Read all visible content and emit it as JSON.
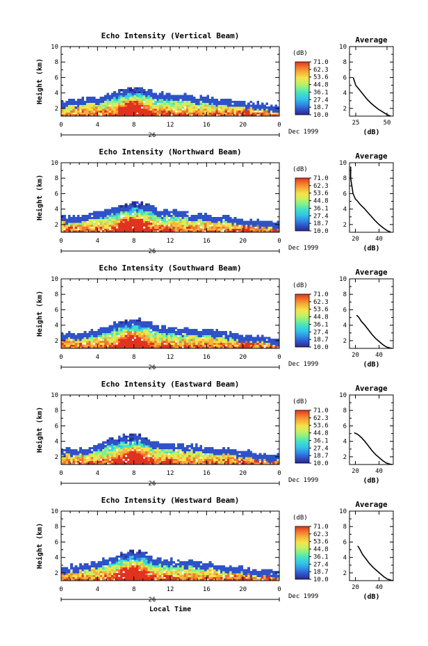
{
  "colorbar": {
    "unit": "(dB)",
    "ticks": [
      "71.0",
      "62.3",
      "53.6",
      "44.8",
      "36.1",
      "27.4",
      "18.7",
      "10.0"
    ],
    "colors": [
      "#2b2a8e",
      "#2f52c8",
      "#2f8ee6",
      "#35c3e8",
      "#3fe0c8",
      "#7ff08c",
      "#c8f060",
      "#f5e44a",
      "#f8b13a",
      "#f2772c",
      "#e1321f"
    ]
  },
  "shared_axes": {
    "time_ticks": [
      "0",
      "4",
      "8",
      "12",
      "16",
      "20",
      "0"
    ],
    "height_ticks": [
      "10",
      "8",
      "6",
      "4",
      "2"
    ],
    "height_label": "Height (km)",
    "day_label": "26",
    "month_label": "Dec 1999",
    "xlabel": "Local Time",
    "avg_title": "Average",
    "avg_xlabel": "(dB)"
  },
  "chart_data": [
    {
      "type": "heatmap",
      "title": "Echo Intensity (Vertical Beam)",
      "x_range": [
        0,
        24
      ],
      "y_range": [
        1,
        10
      ],
      "cloud_top": [
        [
          0,
          2.9
        ],
        [
          2,
          3.0
        ],
        [
          4,
          3.3
        ],
        [
          6,
          4.0
        ],
        [
          7,
          4.5
        ],
        [
          8,
          4.7
        ],
        [
          9,
          4.6
        ],
        [
          10,
          4.0
        ],
        [
          11,
          3.8
        ],
        [
          12,
          3.8
        ],
        [
          14,
          3.5
        ],
        [
          16,
          3.3
        ],
        [
          18,
          3.1
        ],
        [
          20,
          2.8
        ],
        [
          22,
          2.5
        ],
        [
          24,
          2.2
        ]
      ],
      "avg_profile": {
        "xticks": [
          "25",
          "50"
        ],
        "xlim": [
          20,
          55
        ],
        "x": [
          23,
          25,
          28,
          31,
          34,
          37,
          40,
          43,
          46,
          48,
          50,
          52,
          53
        ],
        "y": [
          6.0,
          5.0,
          4.4,
          3.8,
          3.2,
          2.7,
          2.3,
          1.9,
          1.6,
          1.4,
          1.2,
          1.05,
          1.0
        ]
      }
    },
    {
      "type": "heatmap",
      "title": "Echo Intensity (Northward Beam)",
      "x_range": [
        0,
        24
      ],
      "y_range": [
        1,
        10
      ],
      "cloud_top": [
        [
          0,
          2.9
        ],
        [
          2,
          2.9
        ],
        [
          4,
          3.4
        ],
        [
          6,
          4.2
        ],
        [
          7,
          4.6
        ],
        [
          8,
          4.8
        ],
        [
          9,
          4.7
        ],
        [
          10,
          4.1
        ],
        [
          11,
          3.6
        ],
        [
          12,
          3.8
        ],
        [
          14,
          3.4
        ],
        [
          16,
          3.2
        ],
        [
          18,
          3.0
        ],
        [
          20,
          2.6
        ],
        [
          22,
          2.4
        ],
        [
          24,
          2.2
        ]
      ],
      "avg_profile": {
        "xticks": [
          "20",
          "40"
        ],
        "xlim": [
          15,
          52
        ],
        "x": [
          16,
          16,
          18,
          20,
          22,
          24,
          28,
          32,
          36,
          40,
          44,
          47,
          50
        ],
        "y": [
          9.5,
          8.0,
          6.0,
          5.3,
          5.0,
          4.6,
          4.0,
          3.3,
          2.6,
          2.0,
          1.5,
          1.2,
          1.0
        ]
      }
    },
    {
      "type": "heatmap",
      "title": "Echo Intensity (Southward Beam)",
      "x_range": [
        0,
        24
      ],
      "y_range": [
        1,
        10
      ],
      "cloud_top": [
        [
          0,
          2.8
        ],
        [
          2,
          3.0
        ],
        [
          4,
          3.3
        ],
        [
          6,
          4.2
        ],
        [
          7,
          4.6
        ],
        [
          8,
          4.7
        ],
        [
          9,
          4.6
        ],
        [
          10,
          4.0
        ],
        [
          11,
          3.8
        ],
        [
          12,
          3.7
        ],
        [
          14,
          3.4
        ],
        [
          16,
          3.2
        ],
        [
          18,
          3.0
        ],
        [
          20,
          2.7
        ],
        [
          22,
          2.4
        ],
        [
          24,
          2.2
        ]
      ],
      "avg_profile": {
        "xticks": [
          "20",
          "40"
        ],
        "xlim": [
          15,
          52
        ],
        "x": [
          21,
          23,
          25,
          28,
          31,
          34,
          37,
          40,
          43,
          46,
          49,
          51
        ],
        "y": [
          5.3,
          5.0,
          4.5,
          4.0,
          3.4,
          2.8,
          2.3,
          1.9,
          1.5,
          1.2,
          1.05,
          1.0
        ]
      }
    },
    {
      "type": "heatmap",
      "title": "Echo Intensity (Eastward Beam)",
      "x_range": [
        0,
        24
      ],
      "y_range": [
        1,
        10
      ],
      "cloud_top": [
        [
          0,
          2.8
        ],
        [
          2,
          2.9
        ],
        [
          4,
          3.4
        ],
        [
          6,
          4.3
        ],
        [
          7,
          4.7
        ],
        [
          8,
          4.8
        ],
        [
          9,
          4.6
        ],
        [
          10,
          4.0
        ],
        [
          11,
          3.8
        ],
        [
          12,
          3.7
        ],
        [
          14,
          3.4
        ],
        [
          16,
          3.2
        ],
        [
          18,
          3.0
        ],
        [
          20,
          2.6
        ],
        [
          22,
          2.3
        ],
        [
          24,
          2.1
        ]
      ],
      "avg_profile": {
        "xticks": [
          "20",
          "40"
        ],
        "xlim": [
          15,
          52
        ],
        "x": [
          19,
          22,
          25,
          28,
          31,
          34,
          37,
          40,
          43,
          46,
          49,
          51
        ],
        "y": [
          5.1,
          4.9,
          4.5,
          4.0,
          3.4,
          2.8,
          2.3,
          1.9,
          1.5,
          1.2,
          1.05,
          1.0
        ]
      }
    },
    {
      "type": "heatmap",
      "title": "Echo Intensity (Westward Beam)",
      "x_range": [
        0,
        24
      ],
      "y_range": [
        1,
        10
      ],
      "cloud_top": [
        [
          0,
          2.7
        ],
        [
          2,
          2.9
        ],
        [
          4,
          3.3
        ],
        [
          6,
          4.2
        ],
        [
          7,
          4.6
        ],
        [
          8,
          4.7
        ],
        [
          9,
          4.6
        ],
        [
          10,
          4.0
        ],
        [
          11,
          3.7
        ],
        [
          12,
          3.7
        ],
        [
          14,
          3.4
        ],
        [
          16,
          3.2
        ],
        [
          18,
          2.9
        ],
        [
          20,
          2.6
        ],
        [
          22,
          2.3
        ],
        [
          24,
          2.1
        ]
      ],
      "avg_profile": {
        "xticks": [
          "20",
          "40"
        ],
        "xlim": [
          15,
          52
        ],
        "x": [
          22,
          24,
          26,
          29,
          32,
          35,
          38,
          41,
          44,
          47,
          50,
          52
        ],
        "y": [
          5.5,
          5.0,
          4.4,
          3.8,
          3.2,
          2.7,
          2.3,
          1.9,
          1.5,
          1.2,
          1.05,
          1.0
        ]
      }
    }
  ]
}
